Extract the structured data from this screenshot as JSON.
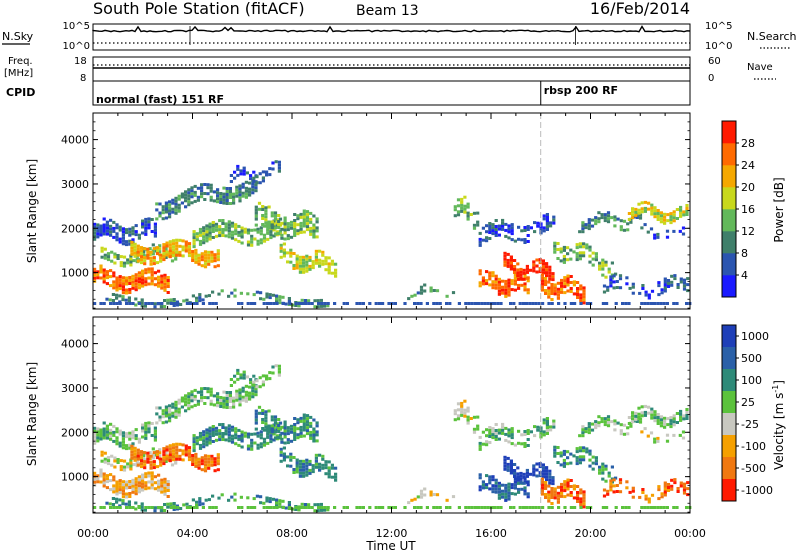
{
  "header": {
    "station": "South Pole Station (fitACF)",
    "beam": "Beam 13",
    "date": "16/Feb/2014"
  },
  "top_panels": {
    "nsky_label": "N.Sky",
    "nsearch_label": "N.Search",
    "freq_label_line1": "Freq.",
    "freq_label_line2": "[MHz]",
    "nave_label": "Nave",
    "cpid_label": "CPID",
    "nsky_ticks_left": [
      "10^5",
      "10^0"
    ],
    "nsky_ticks_right": [
      "10^5",
      "10^0"
    ],
    "freq_ticks_left": [
      "18",
      "8"
    ],
    "nave_ticks_right": [
      "60",
      "0"
    ],
    "cpid_segments": [
      {
        "label": "normal (fast) 151 RF",
        "start_hour": 0
      },
      {
        "label": "rbsp 200 RF",
        "start_hour": 18
      }
    ]
  },
  "chart_data": [
    {
      "type": "heatmap",
      "title": "Power",
      "xlabel": "Time UT",
      "ylabel": "Slant Range [km]",
      "xlim": [
        0,
        24
      ],
      "ylim": [
        180,
        4600
      ],
      "x_tick_labels": [
        "00:00",
        "04:00",
        "08:00",
        "12:00",
        "16:00",
        "20:00",
        "00:00"
      ],
      "y_tick_labels": [
        "1000",
        "2000",
        "3000",
        "4000"
      ],
      "colorbar": {
        "label": "Power [dB]",
        "tick_labels": [
          "4",
          "8",
          "12",
          "16",
          "20",
          "24",
          "28"
        ],
        "colors": [
          "#1a1aff",
          "#2b55b0",
          "#3f7f6a",
          "#62b85a",
          "#c8d81c",
          "#f5a800",
          "#ff6a00",
          "#ff1a00"
        ]
      }
    },
    {
      "type": "heatmap",
      "title": "Velocity",
      "xlabel": "Time UT",
      "ylabel": "Slant Range [km]",
      "xlim": [
        0,
        24
      ],
      "ylim": [
        180,
        4600
      ],
      "x_tick_labels": [
        "00:00",
        "04:00",
        "08:00",
        "12:00",
        "16:00",
        "20:00",
        "00:00"
      ],
      "y_tick_labels": [
        "1000",
        "2000",
        "3000",
        "4000"
      ],
      "colorbar": {
        "label": "Velocity [m s",
        "label_superscript": "-1",
        "label_close": "]",
        "tick_labels": [
          "1000",
          "500",
          "100",
          "25",
          "-25",
          "-100",
          "-500",
          "-1000"
        ],
        "colors": [
          "#1e3fb8",
          "#2a60a8",
          "#2e8a78",
          "#5bc23c",
          "#c8c8c0",
          "#f5a000",
          "#f07810",
          "#ff1a00"
        ]
      }
    }
  ],
  "x_axis_title": "Time UT"
}
